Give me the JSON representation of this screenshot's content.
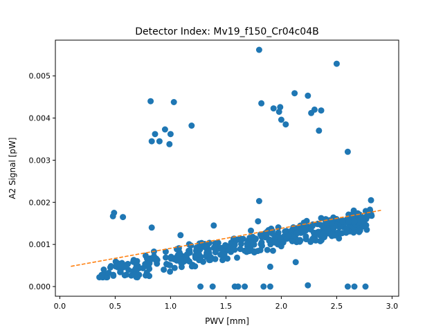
{
  "chart_data": {
    "type": "scatter",
    "title": "Detector Index: Mv19_f150_Cr04c04B",
    "xlabel": "PWV [mm]",
    "ylabel": "A2 Signal [pW]",
    "xlim": [
      -0.04,
      3.06
    ],
    "ylim": [
      -0.00023,
      0.00585
    ],
    "xticks": [
      "0.0",
      "0.5",
      "1.0",
      "1.5",
      "2.0",
      "2.5",
      "3.0"
    ],
    "yticks": [
      "0.000",
      "0.001",
      "0.002",
      "0.003",
      "0.004",
      "0.005"
    ],
    "grid": false,
    "colors": {
      "points": "#1f77b4",
      "fit": "#ff7f0e"
    },
    "fit_line": {
      "style": "dashed",
      "x": [
        0.1,
        2.9
      ],
      "y": [
        0.00048,
        0.00181
      ]
    },
    "outliers": [
      [
        0.82,
        0.0044
      ],
      [
        0.83,
        0.00345
      ],
      [
        0.86,
        0.00362
      ],
      [
        0.9,
        0.00345
      ],
      [
        0.95,
        0.00373
      ],
      [
        0.99,
        0.00338
      ],
      [
        1.0,
        0.00362
      ],
      [
        1.03,
        0.00438
      ],
      [
        1.19,
        0.00382
      ],
      [
        1.8,
        0.00562
      ],
      [
        1.82,
        0.00435
      ],
      [
        1.93,
        0.00423
      ],
      [
        1.98,
        0.00415
      ],
      [
        1.99,
        0.00426
      ],
      [
        2.0,
        0.00396
      ],
      [
        2.04,
        0.00385
      ],
      [
        2.12,
        0.00459
      ],
      [
        2.24,
        0.00453
      ],
      [
        2.27,
        0.00412
      ],
      [
        2.3,
        0.0042
      ],
      [
        2.34,
        0.0037
      ],
      [
        2.36,
        0.00418
      ],
      [
        2.5,
        0.00529
      ],
      [
        2.6,
        0.0032
      ]
    ],
    "zero_points": [
      [
        1.27,
        0.0
      ],
      [
        1.38,
        0.0
      ],
      [
        1.58,
        0.0
      ],
      [
        1.61,
        0.0
      ],
      [
        1.67,
        0.0
      ],
      [
        1.84,
        0.0
      ],
      [
        1.9,
        0.0
      ],
      [
        2.24,
        3e-05
      ],
      [
        2.6,
        0.0
      ],
      [
        2.66,
        0.0
      ],
      [
        2.76,
        0.0
      ]
    ],
    "other_points": [
      [
        0.48,
        0.00167
      ],
      [
        0.49,
        0.00175
      ],
      [
        0.57,
        0.00165
      ],
      [
        0.83,
        0.0014
      ],
      [
        0.85,
        0.00083
      ],
      [
        1.09,
        0.00122
      ],
      [
        1.39,
        0.00145
      ],
      [
        1.8,
        0.00203
      ],
      [
        1.79,
        0.00155
      ],
      [
        1.9,
        0.00047
      ],
      [
        2.13,
        0.00058
      ],
      [
        2.55,
        0.00127
      ],
      [
        2.81,
        0.00205
      ]
    ],
    "band": {
      "x_start": 0.35,
      "x_end": 2.82,
      "y_start": 0.0003,
      "y_end": 0.0016,
      "spread": 0.00045,
      "count": 430
    }
  }
}
